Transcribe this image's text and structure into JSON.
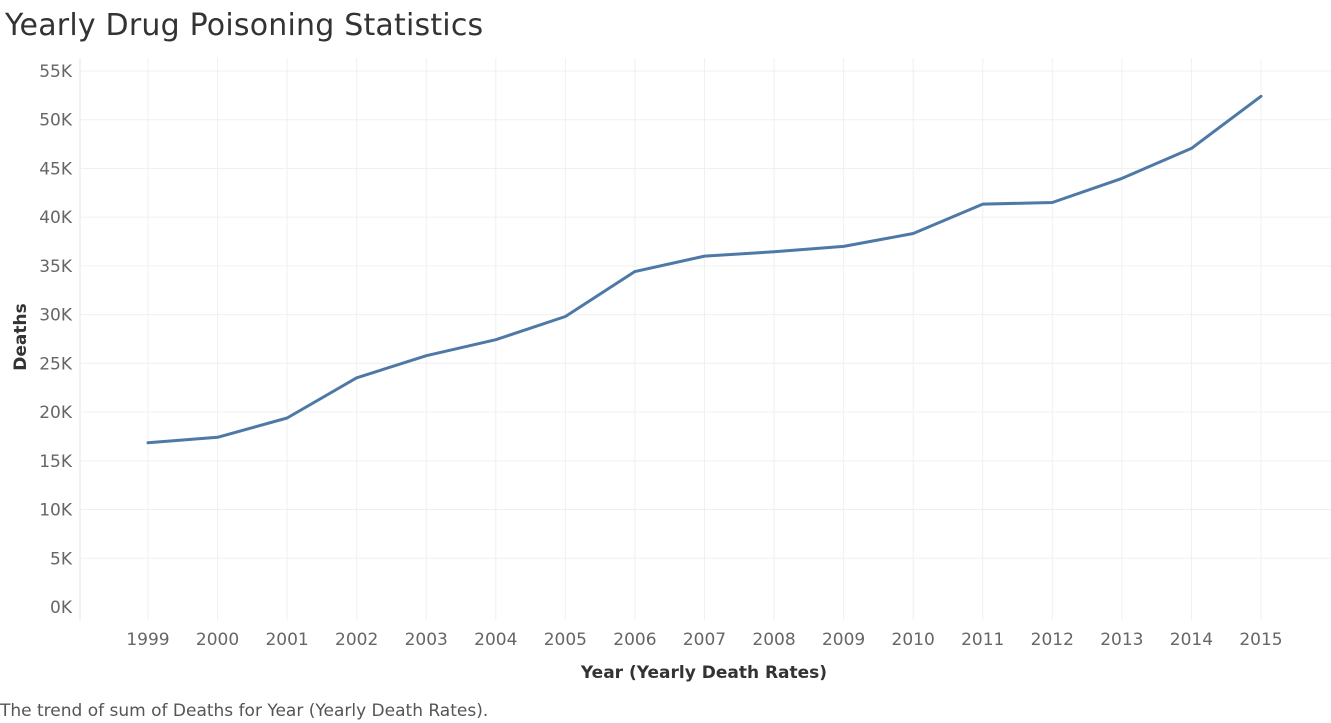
{
  "title": "Yearly Drug Poisoning Statistics",
  "caption": "The trend of sum of Deaths for Year (Yearly Death Rates).",
  "chart_data": {
    "type": "line",
    "title": "Yearly Drug Poisoning Statistics",
    "xlabel": "Year (Yearly Death Rates)",
    "ylabel": "Deaths",
    "x": [
      1999,
      2000,
      2001,
      2002,
      2003,
      2004,
      2005,
      2006,
      2007,
      2008,
      2009,
      2010,
      2011,
      2012,
      2013,
      2014,
      2015
    ],
    "series": [
      {
        "values": [
          16849,
          17415,
          19394,
          23518,
          25785,
          27424,
          29813,
          34425,
          36010,
          36450,
          37004,
          38329,
          41340,
          41502,
          43982,
          47055,
          52404
        ]
      }
    ],
    "ylim": [
      0,
      55000
    ],
    "yticks": [
      0,
      5000,
      10000,
      15000,
      20000,
      25000,
      30000,
      35000,
      40000,
      45000,
      50000,
      55000
    ],
    "ytick_labels": [
      "0K",
      "5K",
      "10K",
      "15K",
      "20K",
      "25K",
      "30K",
      "35K",
      "40K",
      "45K",
      "50K",
      "55K"
    ],
    "line_color": "#4e79a7",
    "grid": true
  }
}
